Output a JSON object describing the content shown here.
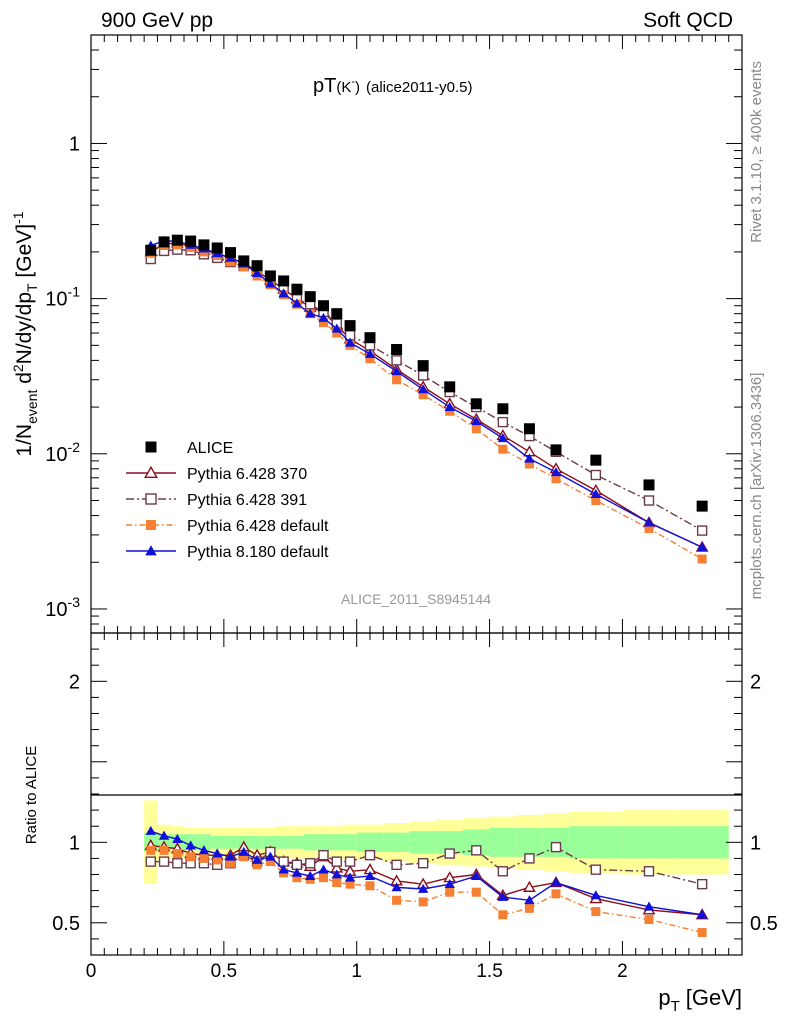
{
  "header": {
    "left": "900 GeV pp",
    "right": "Soft QCD"
  },
  "side_labels": {
    "rivet": "Rivet 3.1.10, ≥ 400k events",
    "mcplots": "mcplots.cern.ch [arXiv:1306.3436]"
  },
  "chart_data": {
    "type": "scatter",
    "title": "pT(K⁻) (alice2011-y0.5)",
    "title_main": "pT",
    "title_particle": "(K",
    "title_charge": "-",
    "title_particle_close": ")",
    "title_tag": "(alice2011-y0.5)",
    "analysis_label": "ALICE_2011_S8945144",
    "xlabel": "p_T [GeV]",
    "xlabel_main": "p",
    "xlabel_sub": "T",
    "xlabel_unit": "[GeV]",
    "ylabel": "1/N_event d²N/dy/dp_T [GeV]⁻¹",
    "ylabel_parts": {
      "a": "1/N",
      "a_sub": "event",
      "b": " d",
      "b_sup": "2",
      "c": "N/dy/dp",
      "c_sub": "T",
      "d": " [GeV]",
      "d_sup": "-1"
    },
    "ratio_ylabel": "Ratio to ALICE",
    "xlim": [
      0,
      2.45
    ],
    "ylim": [
      0.0007,
      5
    ],
    "y_scale": "log",
    "ratio_ylim": [
      0.3,
      2.3
    ],
    "x_ticks": [
      "0",
      "0.5",
      "1",
      "1.5",
      "2"
    ],
    "x_tick_values": [
      0,
      0.5,
      1,
      1.5,
      2
    ],
    "y_ticks": [
      {
        "value": 1,
        "base": "1",
        "exp": ""
      },
      {
        "value": 0.1,
        "base": "10",
        "exp": "-1"
      },
      {
        "value": 0.01,
        "base": "10",
        "exp": "-2"
      },
      {
        "value": 0.001,
        "base": "10",
        "exp": "-3"
      }
    ],
    "ratio_ticks": [
      {
        "value": 2,
        "label": "2"
      },
      {
        "value": 1,
        "label": "1"
      },
      {
        "value": 0.5,
        "label": "0.5"
      }
    ],
    "legend_position": "lower-left",
    "x": [
      0.225,
      0.275,
      0.325,
      0.375,
      0.425,
      0.475,
      0.525,
      0.575,
      0.625,
      0.675,
      0.725,
      0.775,
      0.825,
      0.875,
      0.925,
      0.975,
      1.05,
      1.15,
      1.25,
      1.35,
      1.45,
      1.55,
      1.65,
      1.75,
      1.9,
      2.1,
      2.3
    ],
    "data": {
      "name": "ALICE",
      "values": [
        0.205,
        0.232,
        0.238,
        0.235,
        0.222,
        0.212,
        0.198,
        0.175,
        0.163,
        0.14,
        0.13,
        0.115,
        0.103,
        0.09,
        0.08,
        0.067,
        0.056,
        0.047,
        0.037,
        0.027,
        0.021,
        0.0195,
        0.0145,
        0.0106,
        0.0091,
        0.0063,
        0.0046
      ]
    },
    "band_edges": [
      0.2,
      0.25,
      0.3,
      0.35,
      0.4,
      0.45,
      0.5,
      0.55,
      0.6,
      0.65,
      0.7,
      0.75,
      0.8,
      0.85,
      0.9,
      0.95,
      1.0,
      1.1,
      1.2,
      1.3,
      1.4,
      1.5,
      1.6,
      1.7,
      1.8,
      2.0,
      2.2,
      2.4
    ],
    "band_stat": [
      0.06,
      0.05,
      0.05,
      0.05,
      0.05,
      0.04,
      0.04,
      0.04,
      0.04,
      0.04,
      0.04,
      0.04,
      0.05,
      0.05,
      0.05,
      0.05,
      0.06,
      0.06,
      0.07,
      0.07,
      0.08,
      0.09,
      0.09,
      0.09,
      0.1,
      0.1,
      0.1
    ],
    "band_total": [
      0.26,
      0.11,
      0.1,
      0.09,
      0.09,
      0.09,
      0.09,
      0.09,
      0.09,
      0.09,
      0.1,
      0.1,
      0.1,
      0.1,
      0.1,
      0.11,
      0.11,
      0.12,
      0.13,
      0.14,
      0.15,
      0.16,
      0.17,
      0.18,
      0.19,
      0.2,
      0.2
    ],
    "series": [
      {
        "name": "Pythia 6.428 370",
        "color": "#8b0d1a",
        "marker": "triangle-open",
        "dash": "",
        "values": [
          0.2,
          0.225,
          0.228,
          0.218,
          0.205,
          0.195,
          0.182,
          0.17,
          0.15,
          0.132,
          0.115,
          0.1,
          0.088,
          0.082,
          0.067,
          0.055,
          0.046,
          0.035,
          0.027,
          0.021,
          0.0167,
          0.0131,
          0.0103,
          0.008,
          0.0058,
          0.0036,
          0.0025
        ],
        "ratio": [
          0.98,
          0.97,
          0.96,
          0.93,
          0.92,
          0.92,
          0.92,
          0.97,
          0.92,
          0.94,
          0.88,
          0.87,
          0.85,
          0.91,
          0.84,
          0.82,
          0.83,
          0.76,
          0.74,
          0.78,
          0.8,
          0.67,
          0.72,
          0.75,
          0.65,
          0.58,
          0.55
        ]
      },
      {
        "name": "Pythia 6.428 391",
        "color": "#6b3a4e",
        "marker": "square-open",
        "dash": "8,3,2,3",
        "values": [
          0.18,
          0.203,
          0.207,
          0.205,
          0.193,
          0.183,
          0.172,
          0.162,
          0.15,
          0.13,
          0.116,
          0.099,
          0.092,
          0.082,
          0.069,
          0.058,
          0.05,
          0.04,
          0.032,
          0.025,
          0.02,
          0.016,
          0.013,
          0.0103,
          0.0073,
          0.005,
          0.0032
        ],
        "ratio": [
          0.88,
          0.88,
          0.87,
          0.87,
          0.87,
          0.86,
          0.87,
          0.92,
          0.88,
          0.94,
          0.88,
          0.86,
          0.87,
          0.92,
          0.88,
          0.88,
          0.92,
          0.86,
          0.87,
          0.93,
          0.95,
          0.82,
          0.9,
          0.97,
          0.83,
          0.82,
          0.74
        ]
      },
      {
        "name": "Pythia 6.428 default",
        "color": "#f58033",
        "marker": "square-filled",
        "dash": "6,3,1.5,3",
        "values": [
          0.196,
          0.22,
          0.222,
          0.214,
          0.2,
          0.19,
          0.173,
          0.16,
          0.14,
          0.123,
          0.106,
          0.092,
          0.08,
          0.07,
          0.06,
          0.05,
          0.041,
          0.03,
          0.024,
          0.0188,
          0.0145,
          0.0107,
          0.0086,
          0.0069,
          0.005,
          0.0033,
          0.0021
        ],
        "ratio": [
          0.95,
          0.95,
          0.93,
          0.91,
          0.9,
          0.89,
          0.87,
          0.91,
          0.86,
          0.88,
          0.81,
          0.78,
          0.77,
          0.78,
          0.75,
          0.74,
          0.73,
          0.64,
          0.63,
          0.69,
          0.69,
          0.55,
          0.59,
          0.68,
          0.57,
          0.52,
          0.44
        ]
      },
      {
        "name": "Pythia 8.180 default",
        "color": "#1010d8",
        "marker": "triangle-filled",
        "dash": "",
        "values": [
          0.22,
          0.236,
          0.234,
          0.222,
          0.21,
          0.196,
          0.183,
          0.168,
          0.146,
          0.125,
          0.108,
          0.093,
          0.08,
          0.075,
          0.064,
          0.052,
          0.044,
          0.034,
          0.026,
          0.02,
          0.0162,
          0.0126,
          0.0093,
          0.0076,
          0.0055,
          0.0036,
          0.0025
        ],
        "ratio": [
          1.07,
          1.04,
          1.02,
          0.98,
          0.95,
          0.93,
          0.91,
          0.94,
          0.89,
          0.91,
          0.83,
          0.81,
          0.79,
          0.83,
          0.8,
          0.78,
          0.79,
          0.72,
          0.71,
          0.74,
          0.79,
          0.66,
          0.64,
          0.75,
          0.67,
          0.6,
          0.55
        ]
      }
    ]
  }
}
